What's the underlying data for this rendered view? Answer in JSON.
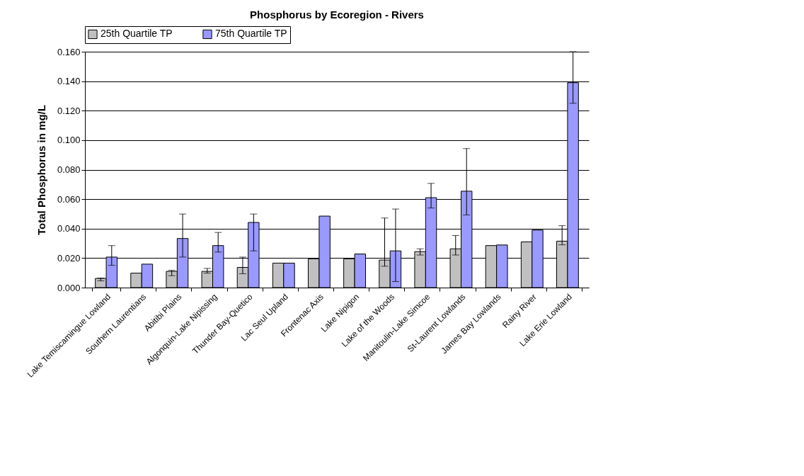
{
  "chart_data": {
    "type": "bar",
    "title": "Phosphorus by Ecoregion - Rivers",
    "ylabel": "Total Phosphorus in mg/L",
    "categories": [
      "Lake Temiscamingue Lowland",
      "Southern Laurentians",
      "Abitibi Plains",
      "Algonquin-Lake Nipissing",
      "Thunder Bay-Quetico",
      "Lac Seul Upland",
      "Frontenac Axis",
      "Lake Nipigon",
      "Lake of the Woods",
      "Manitoulin-Lake Simcoe",
      "St-Laurent Lowlands",
      "James Bay Lowlands",
      "Rainy River",
      "Lake Erie Lowland"
    ],
    "series": [
      {
        "name": "25th Quartile TP",
        "color": "#c0c0c0",
        "values": [
          0.0062,
          0.0098,
          0.011,
          0.011,
          0.0137,
          0.0166,
          0.0195,
          0.0195,
          0.0187,
          0.0244,
          0.0263,
          0.0285,
          0.031,
          0.0315
        ],
        "errors": [
          [
            0.0046,
            0.0065
          ],
          null,
          [
            0.0081,
            0.0117
          ],
          [
            0.0098,
            0.013
          ],
          [
            0.0094,
            0.0207
          ],
          null,
          null,
          null,
          [
            0.0145,
            0.0472
          ],
          [
            0.0221,
            0.0263
          ],
          [
            0.0221,
            0.0353
          ],
          null,
          null,
          [
            0.029,
            0.042
          ]
        ]
      },
      {
        "name": "75th Quartile TP",
        "color": "#9999ff",
        "values": [
          0.0207,
          0.0159,
          0.0333,
          0.0285,
          0.0442,
          0.0166,
          0.0485,
          0.0228,
          0.0249,
          0.061,
          0.0654,
          0.0289,
          0.039,
          0.139
        ],
        "errors": [
          [
            0.0151,
            0.0285
          ],
          null,
          [
            0.0207,
            0.0499
          ],
          [
            0.0241,
            0.0374
          ],
          [
            0.0249,
            0.0499
          ],
          null,
          null,
          null,
          [
            0.0041,
            0.0533
          ],
          [
            0.054,
            0.0707
          ],
          [
            0.0493,
            0.0943
          ],
          null,
          null,
          [
            0.125,
            0.16
          ]
        ]
      }
    ],
    "ylim": [
      0,
      0.16
    ],
    "yticks": [
      {
        "value": 0,
        "label": "0.000"
      },
      {
        "value": 0.02,
        "label": "0.020"
      },
      {
        "value": 0.04,
        "label": "0.040"
      },
      {
        "value": 0.06,
        "label": "0.060"
      },
      {
        "value": 0.08,
        "label": "0.080"
      },
      {
        "value": 0.1,
        "label": "0.100"
      },
      {
        "value": 0.12,
        "label": "0.120"
      },
      {
        "value": 0.14,
        "label": "0.140"
      },
      {
        "value": 0.16,
        "label": "0.160"
      }
    ],
    "grid": "y",
    "legend": "top"
  }
}
